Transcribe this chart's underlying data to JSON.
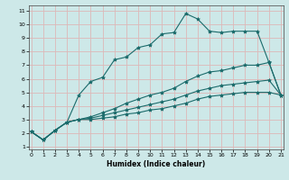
{
  "xlabel": "Humidex (Indice chaleur)",
  "bg_color": "#cde8e8",
  "grid_color": "#ddb8b8",
  "line_color": "#1a6b6b",
  "ylim": [
    1,
    11
  ],
  "xlim": [
    0,
    21
  ],
  "yticks": [
    1,
    2,
    3,
    4,
    5,
    6,
    7,
    8,
    9,
    10,
    11
  ],
  "xticks": [
    0,
    1,
    2,
    3,
    4,
    5,
    6,
    7,
    8,
    9,
    10,
    11,
    12,
    13,
    14,
    15,
    16,
    17,
    18,
    19,
    20,
    21
  ],
  "line1_x": [
    0,
    1,
    2,
    3,
    4,
    5,
    6,
    7,
    8,
    9,
    10,
    11,
    12,
    13,
    14,
    15,
    16,
    17,
    18,
    19,
    20,
    21
  ],
  "line1_y": [
    2.1,
    1.5,
    2.2,
    2.8,
    4.8,
    5.8,
    6.1,
    7.4,
    7.6,
    8.3,
    8.5,
    9.3,
    9.4,
    10.8,
    10.4,
    9.5,
    9.4,
    9.5,
    9.5,
    9.5,
    7.2,
    4.8
  ],
  "line2_x": [
    0,
    1,
    2,
    3,
    4,
    5,
    6,
    7,
    8,
    9,
    10,
    11,
    12,
    13,
    14,
    15,
    16,
    17,
    18,
    19,
    20,
    21
  ],
  "line2_y": [
    2.1,
    1.5,
    2.2,
    2.8,
    3.0,
    3.2,
    3.5,
    3.8,
    4.2,
    4.5,
    4.8,
    5.0,
    5.3,
    5.8,
    6.2,
    6.5,
    6.6,
    6.8,
    7.0,
    7.0,
    7.2,
    4.8
  ],
  "line3_x": [
    0,
    1,
    2,
    3,
    4,
    5,
    6,
    7,
    8,
    9,
    10,
    11,
    12,
    13,
    14,
    15,
    16,
    17,
    18,
    19,
    20,
    21
  ],
  "line3_y": [
    2.1,
    1.5,
    2.2,
    2.8,
    3.0,
    3.1,
    3.3,
    3.5,
    3.7,
    3.9,
    4.1,
    4.3,
    4.5,
    4.8,
    5.1,
    5.3,
    5.5,
    5.6,
    5.7,
    5.8,
    5.9,
    4.8
  ],
  "line4_x": [
    0,
    1,
    2,
    3,
    4,
    5,
    6,
    7,
    8,
    9,
    10,
    11,
    12,
    13,
    14,
    15,
    16,
    17,
    18,
    19,
    20,
    21
  ],
  "line4_y": [
    2.1,
    1.5,
    2.2,
    2.8,
    3.0,
    3.0,
    3.1,
    3.2,
    3.4,
    3.5,
    3.7,
    3.8,
    4.0,
    4.2,
    4.5,
    4.7,
    4.8,
    4.9,
    5.0,
    5.0,
    5.0,
    4.8
  ],
  "marker": "*",
  "markersize": 3,
  "linewidth": 0.8,
  "axis_fontsize": 5.5,
  "tick_fontsize": 4.5
}
